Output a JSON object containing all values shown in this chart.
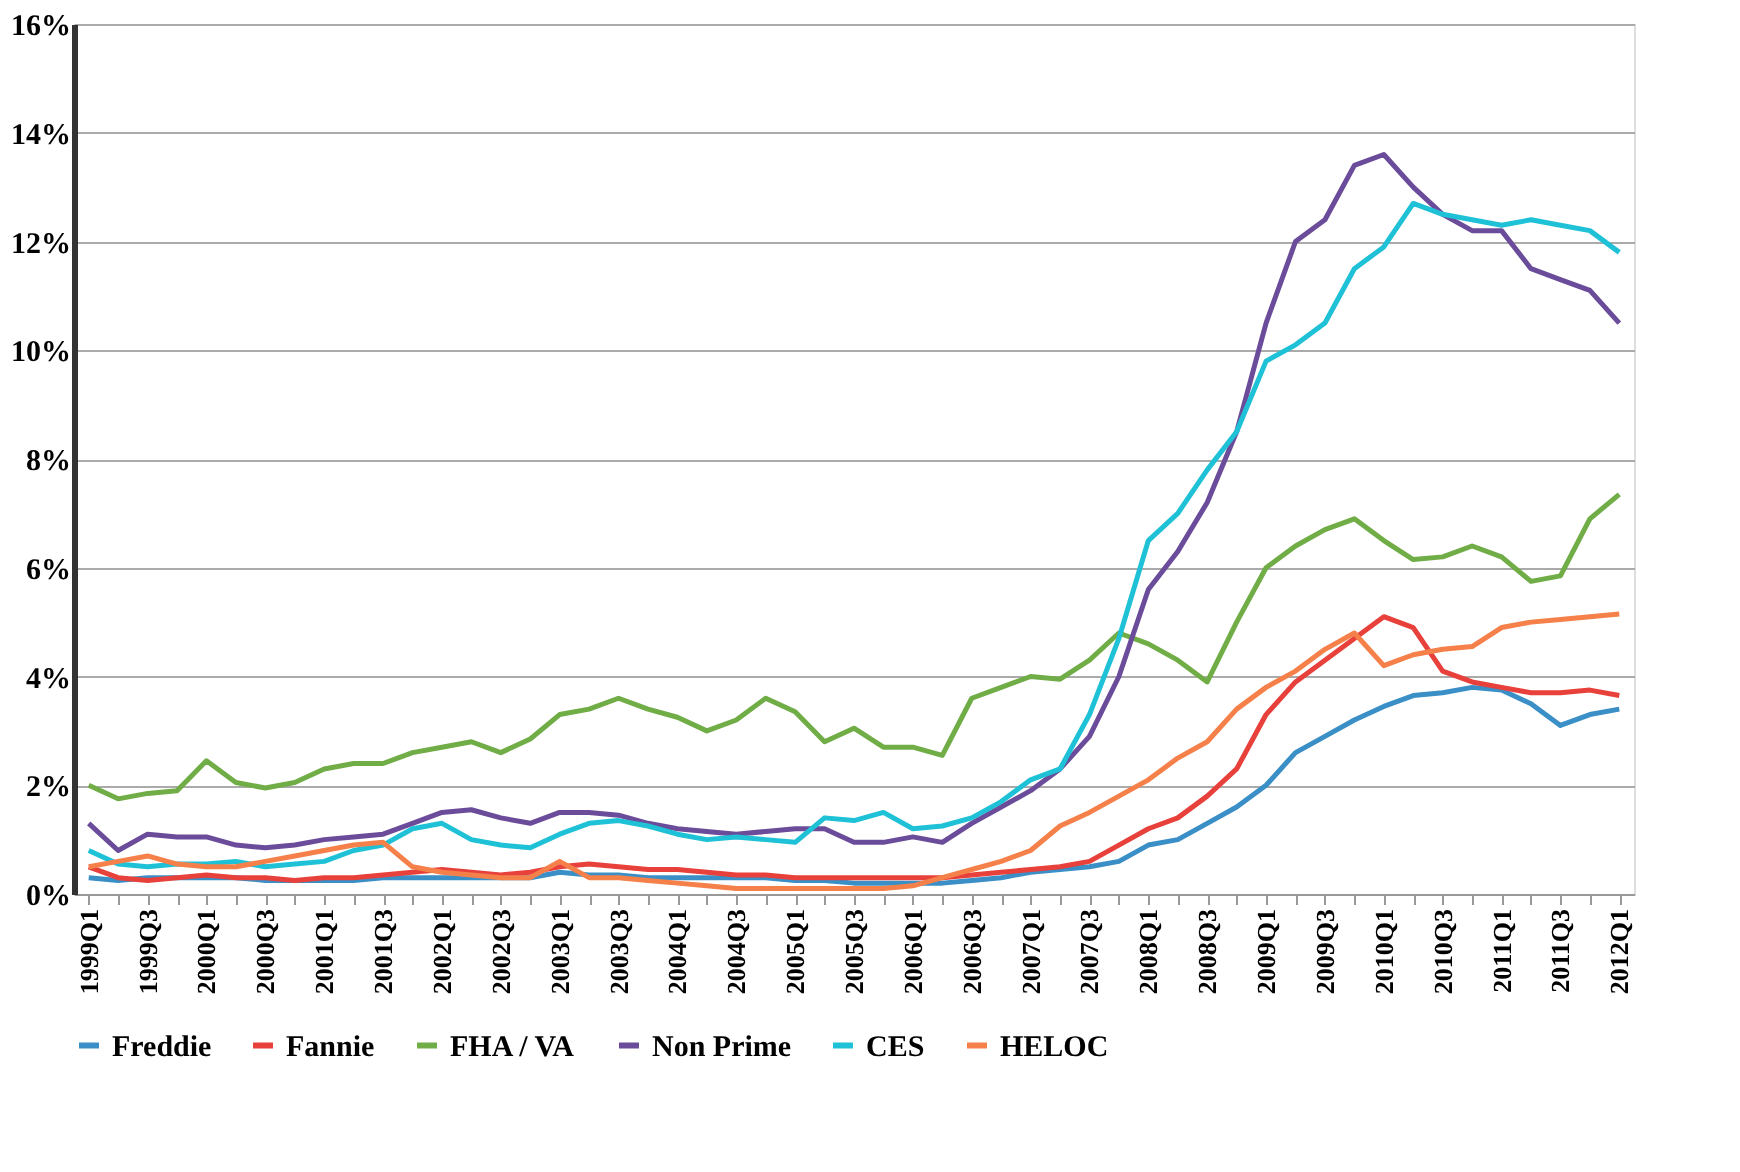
{
  "chart_data": {
    "type": "line",
    "categories": [
      "1999Q1",
      null,
      "1999Q3",
      null,
      "2000Q1",
      null,
      "2000Q3",
      null,
      "2001Q1",
      null,
      "2001Q3",
      null,
      "2002Q1",
      null,
      "2002Q3",
      null,
      "2003Q1",
      null,
      "2003Q3",
      null,
      "2004Q1",
      null,
      "2004Q3",
      null,
      "2005Q1",
      null,
      "2005Q3",
      null,
      "2006Q1",
      null,
      "2006Q3",
      null,
      "2007Q1",
      null,
      "2007Q3",
      null,
      "2008Q1",
      null,
      "2008Q3",
      null,
      "2009Q1",
      null,
      "2009Q3",
      null,
      "2010Q1",
      null,
      "2010Q3",
      null,
      "2011Q1",
      null,
      "2011Q3",
      null,
      "2012Q1"
    ],
    "series": [
      {
        "name": "Freddie",
        "color": "#3a8fc7",
        "values": [
          0.3,
          0.25,
          0.3,
          0.3,
          0.3,
          0.3,
          0.25,
          0.25,
          0.25,
          0.25,
          0.3,
          0.3,
          0.3,
          0.3,
          0.3,
          0.3,
          0.4,
          0.35,
          0.35,
          0.3,
          0.3,
          0.3,
          0.3,
          0.3,
          0.25,
          0.25,
          0.2,
          0.2,
          0.2,
          0.2,
          0.25,
          0.3,
          0.4,
          0.45,
          0.5,
          0.6,
          0.9,
          1.0,
          1.3,
          1.6,
          2.0,
          2.6,
          2.9,
          3.2,
          3.45,
          3.65,
          3.7,
          3.8,
          3.75,
          3.5,
          3.1,
          3.3,
          3.4
        ]
      },
      {
        "name": "Fannie",
        "color": "#e8403a",
        "values": [
          0.5,
          0.3,
          0.25,
          0.3,
          0.35,
          0.3,
          0.3,
          0.25,
          0.3,
          0.3,
          0.35,
          0.4,
          0.45,
          0.4,
          0.35,
          0.4,
          0.5,
          0.55,
          0.5,
          0.45,
          0.45,
          0.4,
          0.35,
          0.35,
          0.3,
          0.3,
          0.3,
          0.3,
          0.3,
          0.3,
          0.35,
          0.4,
          0.45,
          0.5,
          0.6,
          0.9,
          1.2,
          1.4,
          1.8,
          2.3,
          3.3,
          3.9,
          4.3,
          4.7,
          5.1,
          4.9,
          4.1,
          3.9,
          3.8,
          3.7,
          3.7,
          3.75,
          3.65
        ]
      },
      {
        "name": "FHA / VA",
        "color": "#70ad47",
        "values": [
          2.0,
          1.75,
          1.85,
          1.9,
          2.45,
          2.05,
          1.95,
          2.05,
          2.3,
          2.4,
          2.4,
          2.6,
          2.7,
          2.8,
          2.6,
          2.85,
          3.3,
          3.4,
          3.6,
          3.4,
          3.25,
          3.0,
          3.2,
          3.6,
          3.35,
          2.8,
          3.05,
          2.7,
          2.7,
          2.55,
          3.6,
          3.8,
          4.0,
          3.95,
          4.3,
          4.8,
          4.6,
          4.3,
          3.9,
          5.0,
          6.0,
          6.4,
          6.7,
          6.9,
          6.5,
          6.15,
          6.2,
          6.4,
          6.2,
          5.75,
          5.85,
          6.9,
          7.35
        ]
      },
      {
        "name": "Non Prime",
        "color": "#6b4c9a",
        "values": [
          1.3,
          0.8,
          1.1,
          1.05,
          1.05,
          0.9,
          0.85,
          0.9,
          1.0,
          1.05,
          1.1,
          1.3,
          1.5,
          1.55,
          1.4,
          1.3,
          1.5,
          1.5,
          1.45,
          1.3,
          1.2,
          1.15,
          1.1,
          1.15,
          1.2,
          1.2,
          0.95,
          0.95,
          1.05,
          0.95,
          1.3,
          1.6,
          1.9,
          2.3,
          2.9,
          4.0,
          5.6,
          6.3,
          7.2,
          8.5,
          10.5,
          12.0,
          12.4,
          13.4,
          13.6,
          13.0,
          12.5,
          12.2,
          12.2,
          11.5,
          11.3,
          11.1,
          10.5
        ]
      },
      {
        "name": "CES",
        "color": "#1fc1d6",
        "values": [
          0.8,
          0.55,
          0.5,
          0.55,
          0.55,
          0.6,
          0.5,
          0.55,
          0.6,
          0.8,
          0.9,
          1.2,
          1.3,
          1.0,
          0.9,
          0.85,
          1.1,
          1.3,
          1.35,
          1.25,
          1.1,
          1.0,
          1.05,
          1.0,
          0.95,
          1.4,
          1.35,
          1.5,
          1.2,
          1.25,
          1.4,
          1.7,
          2.1,
          2.3,
          3.3,
          4.7,
          6.5,
          7.0,
          7.8,
          8.5,
          9.8,
          10.1,
          10.5,
          11.5,
          11.9,
          12.7,
          12.5,
          12.4,
          12.3,
          12.4,
          12.3,
          12.2,
          11.8
        ]
      },
      {
        "name": "HELOC",
        "color": "#f5804a",
        "values": [
          0.5,
          0.6,
          0.7,
          0.55,
          0.5,
          0.5,
          0.6,
          0.7,
          0.8,
          0.9,
          0.95,
          0.5,
          0.4,
          0.35,
          0.3,
          0.3,
          0.6,
          0.3,
          0.3,
          0.25,
          0.2,
          0.15,
          0.1,
          0.1,
          0.1,
          0.1,
          0.1,
          0.1,
          0.15,
          0.3,
          0.45,
          0.6,
          0.8,
          1.25,
          1.5,
          1.8,
          2.1,
          2.5,
          2.8,
          3.4,
          3.8,
          4.1,
          4.5,
          4.8,
          4.2,
          4.4,
          4.5,
          4.55,
          4.9,
          5.0,
          5.05,
          5.1,
          5.15
        ]
      }
    ],
    "ylim": [
      0,
      16
    ],
    "yticks": [
      {
        "value": 0,
        "label": "0%"
      },
      {
        "value": 2,
        "label": "2%"
      },
      {
        "value": 4,
        "label": "4%"
      },
      {
        "value": 6,
        "label": "6%"
      },
      {
        "value": 8,
        "label": "8%"
      },
      {
        "value": 10,
        "label": "10%"
      },
      {
        "value": 12,
        "label": "12%"
      },
      {
        "value": 14,
        "label": "14%"
      },
      {
        "value": 16,
        "label": "16%"
      }
    ],
    "grid": "y",
    "legend": "bottom",
    "marker": "none",
    "line_style": "solid"
  }
}
